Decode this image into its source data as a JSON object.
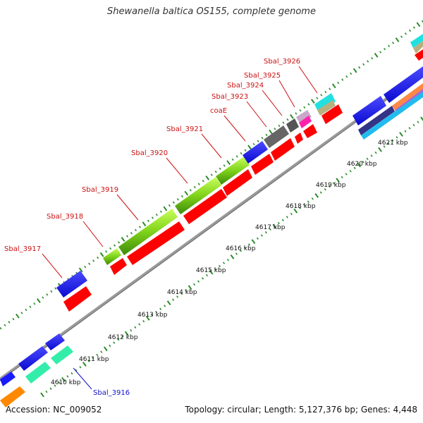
{
  "title": "Shewanella baltica OS155, complete genome",
  "accession": "Accession: NC_009052",
  "summary": "Topology: circular; Length: 5,127,376 bp; Genes: 4,448",
  "colors": {
    "backbone": "#9a9a9a",
    "ticks": "#2a8a2a",
    "label_red": "#cc1111",
    "label_blue": "#1111cc",
    "cds_red": "#ff0000",
    "cds_blue": "#1a1aff",
    "cds_green": "#7fd21a",
    "cds_gray": "#666666",
    "cds_cyan": "#22e0e0",
    "cds_teal": "#33eeaa",
    "cds_orange": "#ff8800"
  },
  "scale_labels": [
    "4610 kbp",
    "4611 kbp",
    "4612 kbp",
    "4613 kbp",
    "4614 kbp",
    "4615 kbp",
    "4616 kbp",
    "4617 kbp",
    "4618 kbp",
    "4619 kbp",
    "4620 kbp",
    "4621 kbp"
  ],
  "gene_labels": [
    {
      "name": "Sbal_3916",
      "color": "blue"
    },
    {
      "name": "Sbal_3917",
      "color": "red"
    },
    {
      "name": "Sbal_3918",
      "color": "red"
    },
    {
      "name": "Sbal_3919",
      "color": "red"
    },
    {
      "name": "Sbal_3920",
      "color": "red"
    },
    {
      "name": "Sbal_3921",
      "color": "red"
    },
    {
      "name": "coaE",
      "color": "red"
    },
    {
      "name": "Sbal_3923",
      "color": "red"
    },
    {
      "name": "Sbal_3924",
      "color": "red"
    },
    {
      "name": "Sbal_3925",
      "color": "red"
    },
    {
      "name": "Sbal_3926",
      "color": "red"
    }
  ]
}
